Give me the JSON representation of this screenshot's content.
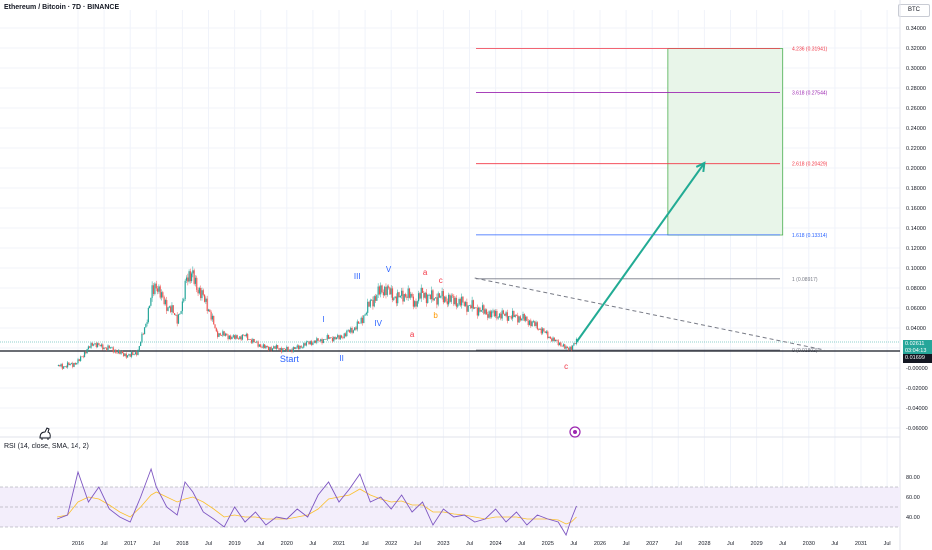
{
  "header": {
    "title": "Ethereum / Bitcoin · 7D · BINANCE",
    "currency": "BTC",
    "rsi_label": "RSI (14, close, SMA, 14, 2)"
  },
  "price_tags": {
    "current_price": "0.02611",
    "countdown": "03:04:13",
    "sma_value": "0.01699"
  },
  "colors": {
    "candle_up": "#26a69a",
    "candle_down": "#ef5350",
    "fib_red": "#f23645",
    "fib_purple": "#9c27b0",
    "fib_blue": "#2962ff",
    "fib_gray": "#787b86",
    "arrow": "#22ab94",
    "target_box": "#e8f5e9",
    "rsi_line": "#7e57c2",
    "rsi_ma": "#fbc02d",
    "wave_blue": "#2962ff",
    "wave_red": "#f23645",
    "wave_orange": "#ff9800"
  },
  "chart_data": {
    "type": "candlestick",
    "title": "Ethereum / Bitcoin · 7D · BINANCE",
    "y_axis": {
      "unit": "BTC",
      "ylim": [
        -0.066,
        0.345
      ],
      "ticks": [
        "0.34000",
        "0.32000",
        "0.30000",
        "0.28000",
        "0.26000",
        "0.24000",
        "0.22000",
        "0.20000",
        "0.18000",
        "0.16000",
        "0.14000",
        "0.12000",
        "0.10000",
        "0.08000",
        "0.06000",
        "0.04000",
        "0.02000",
        "-0.00000",
        "-0.02000",
        "-0.04000",
        "-0.06000"
      ]
    },
    "x_axis": {
      "ticks": [
        "2016",
        "Jul",
        "2017",
        "Jul",
        "2018",
        "Jul",
        "2019",
        "Jul",
        "2020",
        "Jul",
        "2021",
        "Jul",
        "2022",
        "Jul",
        "2023",
        "Jul",
        "2024",
        "Jul",
        "2025",
        "Jul",
        "2026",
        "Jul",
        "2027",
        "Jul",
        "2028",
        "Jul",
        "2029",
        "Jul",
        "2030",
        "Jul",
        "2031",
        "Jul"
      ]
    },
    "price_series": {
      "name": "ETH/BTC",
      "x": [
        2015.6,
        2015.75,
        2015.9,
        2016.0,
        2016.15,
        2016.3,
        2016.45,
        2016.6,
        2016.8,
        2017.0,
        2017.15,
        2017.3,
        2017.42,
        2017.5,
        2017.6,
        2017.75,
        2017.9,
        2018.0,
        2018.08,
        2018.2,
        2018.35,
        2018.5,
        2018.65,
        2018.8,
        2019.0,
        2019.2,
        2019.4,
        2019.6,
        2019.8,
        2020.0,
        2020.2,
        2020.4,
        2020.6,
        2020.8,
        2021.0,
        2021.15,
        2021.3,
        2021.4,
        2021.5,
        2021.6,
        2021.75,
        2021.9,
        2022.0,
        2022.15,
        2022.3,
        2022.45,
        2022.6,
        2022.75,
        2022.9,
        2023.1,
        2023.3,
        2023.5,
        2023.7,
        2023.9,
        2024.1,
        2024.3,
        2024.5,
        2024.7,
        2024.9,
        2025.1,
        2025.25,
        2025.35,
        2025.45,
        2025.55
      ],
      "y": [
        0.002,
        0.002,
        0.004,
        0.006,
        0.017,
        0.025,
        0.021,
        0.02,
        0.015,
        0.012,
        0.017,
        0.045,
        0.075,
        0.085,
        0.07,
        0.06,
        0.05,
        0.06,
        0.095,
        0.09,
        0.075,
        0.06,
        0.035,
        0.033,
        0.03,
        0.032,
        0.025,
        0.02,
        0.02,
        0.018,
        0.02,
        0.025,
        0.027,
        0.03,
        0.03,
        0.035,
        0.04,
        0.045,
        0.055,
        0.065,
        0.075,
        0.08,
        0.073,
        0.07,
        0.075,
        0.065,
        0.075,
        0.07,
        0.071,
        0.069,
        0.066,
        0.062,
        0.058,
        0.054,
        0.053,
        0.052,
        0.05,
        0.045,
        0.037,
        0.028,
        0.024,
        0.019,
        0.021,
        0.026
      ]
    },
    "wave_labels": [
      {
        "text": "Start",
        "x": 2020.05,
        "y": 0.006,
        "color": "blue"
      },
      {
        "text": "I",
        "x": 2020.7,
        "y": 0.046,
        "color": "blue"
      },
      {
        "text": "II",
        "x": 2021.05,
        "y": 0.007,
        "color": "blue"
      },
      {
        "text": "III",
        "x": 2021.35,
        "y": 0.089,
        "color": "blue"
      },
      {
        "text": "IV",
        "x": 2021.75,
        "y": 0.042,
        "color": "blue"
      },
      {
        "text": "V",
        "x": 2021.95,
        "y": 0.096,
        "color": "blue"
      },
      {
        "text": "a",
        "x": 2022.65,
        "y": 0.093,
        "color": "red"
      },
      {
        "text": "a",
        "x": 2022.4,
        "y": 0.031,
        "color": "red"
      },
      {
        "text": "b",
        "x": 2022.85,
        "y": 0.05,
        "color": "orange"
      },
      {
        "text": "c",
        "x": 2022.95,
        "y": 0.085,
        "color": "red"
      },
      {
        "text": "c",
        "x": 2025.35,
        "y": -0.001,
        "color": "red"
      }
    ],
    "fib_levels": [
      {
        "label": "4.236 (0.31941)",
        "value": 0.31941,
        "color": "red"
      },
      {
        "label": "3.618 (0.27544)",
        "value": 0.27544,
        "color": "purple"
      },
      {
        "label": "2.618 (0.20429)",
        "value": 0.20429,
        "color": "red"
      },
      {
        "label": "1.618 (0.13314)",
        "value": 0.13314,
        "color": "blue"
      },
      {
        "label": "1 (0.08917)",
        "value": 0.08917,
        "color": "gray"
      },
      {
        "label": "0 (0.01802)",
        "value": 0.01802,
        "color": "gray"
      }
    ],
    "projection_arrow": {
      "from": [
        2025.55,
        0.026
      ],
      "to": [
        2028.0,
        0.205
      ]
    },
    "trendline": {
      "from": [
        2023.6,
        0.09
      ],
      "to": [
        2030.3,
        0.018
      ]
    },
    "target_zone": {
      "x": [
        2027.3,
        2029.5
      ],
      "y": [
        0.133,
        0.3194
      ]
    },
    "current_price_line": 0.026,
    "support_line": 0.017,
    "rsi": {
      "label": "RSI (14, close, SMA, 14, 2)",
      "ticks": [
        "80.00",
        "60.00",
        "40.00"
      ],
      "ylim": [
        20,
        90
      ],
      "bands": [
        30,
        50,
        70
      ],
      "x": [
        2015.6,
        2015.8,
        2016.0,
        2016.2,
        2016.4,
        2016.6,
        2016.8,
        2017.0,
        2017.2,
        2017.4,
        2017.5,
        2017.7,
        2017.9,
        2018.05,
        2018.2,
        2018.4,
        2018.6,
        2018.8,
        2019.0,
        2019.2,
        2019.4,
        2019.6,
        2019.8,
        2020.0,
        2020.2,
        2020.4,
        2020.6,
        2020.8,
        2021.0,
        2021.2,
        2021.4,
        2021.6,
        2021.8,
        2022.0,
        2022.2,
        2022.4,
        2022.6,
        2022.8,
        2023.0,
        2023.2,
        2023.4,
        2023.6,
        2023.8,
        2024.0,
        2024.2,
        2024.4,
        2024.6,
        2024.8,
        2025.0,
        2025.2,
        2025.35,
        2025.45,
        2025.55
      ],
      "values": [
        38,
        42,
        85,
        55,
        70,
        48,
        40,
        35,
        60,
        88,
        70,
        50,
        42,
        75,
        65,
        45,
        38,
        30,
        50,
        35,
        45,
        32,
        40,
        38,
        48,
        40,
        62,
        75,
        55,
        68,
        83,
        55,
        60,
        48,
        62,
        45,
        55,
        32,
        48,
        40,
        42,
        35,
        38,
        48,
        35,
        45,
        32,
        42,
        38,
        35,
        22,
        38,
        51
      ],
      "ma_values": [
        40,
        42,
        55,
        60,
        58,
        52,
        45,
        40,
        50,
        62,
        65,
        60,
        55,
        58,
        60,
        55,
        48,
        40,
        42,
        40,
        40,
        38,
        38,
        38,
        40,
        42,
        48,
        58,
        60,
        62,
        68,
        62,
        58,
        55,
        56,
        52,
        52,
        45,
        45,
        43,
        42,
        40,
        38,
        40,
        40,
        40,
        38,
        38,
        38,
        37,
        33,
        35,
        40
      ]
    }
  }
}
